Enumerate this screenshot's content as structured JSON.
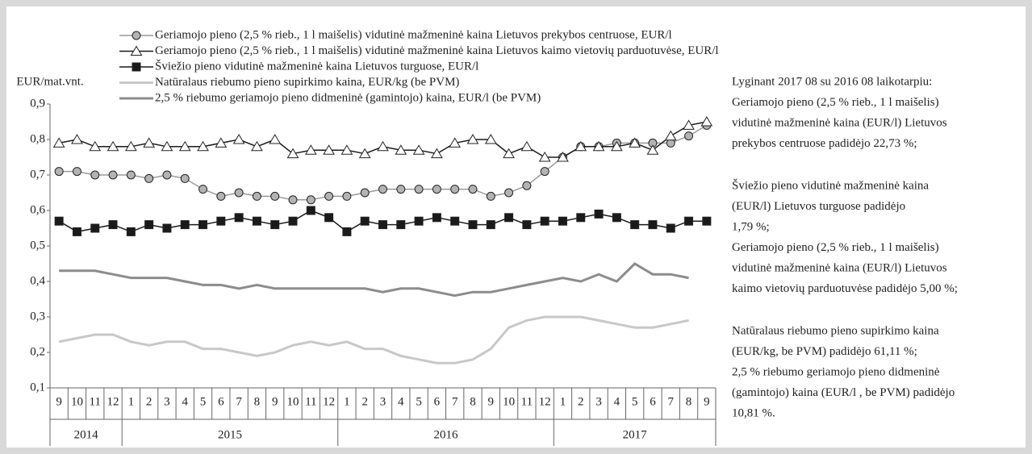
{
  "chart_data": {
    "type": "line",
    "y_label": "EUR/mat.vnt.",
    "categories": [
      "9",
      "10",
      "11",
      "12",
      "1",
      "2",
      "3",
      "4",
      "5",
      "6",
      "7",
      "8",
      "9",
      "10",
      "11",
      "12",
      "1",
      "2",
      "3",
      "4",
      "5",
      "6",
      "7",
      "8",
      "9",
      "10",
      "11",
      "12",
      "1",
      "2",
      "3",
      "4",
      "5",
      "6",
      "7",
      "8",
      "9"
    ],
    "years": [
      "2014",
      "2015",
      "2016",
      "2017"
    ],
    "ylim": [
      0.1,
      0.9
    ],
    "yticks": [
      {
        "value": 0.1,
        "label": "0,1"
      },
      {
        "value": 0.2,
        "label": "0,2"
      },
      {
        "value": 0.3,
        "label": "0,3"
      },
      {
        "value": 0.4,
        "label": "0,4"
      },
      {
        "value": 0.5,
        "label": "0,5"
      },
      {
        "value": 0.6,
        "label": "0,6"
      },
      {
        "value": 0.7,
        "label": "0,7"
      },
      {
        "value": 0.8,
        "label": "0,8"
      },
      {
        "value": 0.9,
        "label": "0,9"
      }
    ],
    "series": [
      {
        "name": "Geriamojo pieno (2,5 % rieb., 1 l maišelis) vidutinė mažmeninė kaina Lietuvos prekybos centruose, EUR/l",
        "color": "#9a9a9a",
        "marker": "circle",
        "marker_fill": "#b3b3b3",
        "values": [
          0.71,
          0.71,
          0.7,
          0.7,
          0.7,
          0.69,
          0.7,
          0.69,
          0.66,
          0.64,
          0.65,
          0.64,
          0.64,
          0.63,
          0.63,
          0.64,
          0.64,
          0.65,
          0.66,
          0.66,
          0.66,
          0.66,
          0.66,
          0.66,
          0.64,
          0.65,
          0.67,
          0.71,
          0.75,
          0.78,
          0.78,
          0.79,
          0.79,
          0.79,
          0.79,
          0.81,
          0.84
        ]
      },
      {
        "name": "Geriamojo pieno (2,5 % rieb., 1 l maišelis) vidutinė mažmeninė kaina Lietuvos kaimo vietovių parduotuvėse, EUR/l",
        "color": "#1a1a1a",
        "marker": "triangle",
        "marker_fill": "#ffffff",
        "values": [
          0.79,
          0.8,
          0.78,
          0.78,
          0.78,
          0.79,
          0.78,
          0.78,
          0.78,
          0.79,
          0.8,
          0.78,
          0.8,
          0.76,
          0.77,
          0.77,
          0.77,
          0.76,
          0.78,
          0.77,
          0.77,
          0.76,
          0.79,
          0.8,
          0.8,
          0.76,
          0.78,
          0.75,
          0.75,
          0.78,
          0.78,
          0.78,
          0.79,
          0.77,
          0.81,
          0.84,
          0.85
        ]
      },
      {
        "name": "Šviežio pieno vidutinė mažmeninė kaina Lietuvos turguose, EUR/l",
        "color": "#1a1a1a",
        "marker": "square",
        "marker_fill": "#1a1a1a",
        "values": [
          0.57,
          0.54,
          0.55,
          0.56,
          0.54,
          0.56,
          0.55,
          0.56,
          0.56,
          0.57,
          0.58,
          0.57,
          0.56,
          0.57,
          0.6,
          0.58,
          0.54,
          0.57,
          0.56,
          0.56,
          0.57,
          0.58,
          0.57,
          0.56,
          0.56,
          0.58,
          0.56,
          0.57,
          0.57,
          0.58,
          0.59,
          0.58,
          0.56,
          0.56,
          0.55,
          0.57,
          0.57
        ]
      },
      {
        "name": "Natūralaus riebumo pieno supirkimo kaina, EUR/kg (be PVM)",
        "color": "#c8c8c8",
        "values": [
          0.23,
          0.24,
          0.25,
          0.25,
          0.23,
          0.22,
          0.23,
          0.23,
          0.21,
          0.21,
          0.2,
          0.19,
          0.2,
          0.22,
          0.23,
          0.22,
          0.23,
          0.21,
          0.21,
          0.19,
          0.18,
          0.17,
          0.17,
          0.18,
          0.21,
          0.27,
          0.29,
          0.3,
          0.3,
          0.3,
          0.29,
          0.28,
          0.27,
          0.27,
          0.28,
          0.29,
          null
        ]
      },
      {
        "name": "2,5 % riebumo geriamojo pieno didmeninė (gamintojo) kaina, EUR/l (be PVM)",
        "color": "#8c8c8c",
        "values": [
          0.43,
          0.43,
          0.43,
          0.42,
          0.41,
          0.41,
          0.41,
          0.4,
          0.39,
          0.39,
          0.38,
          0.39,
          0.38,
          0.38,
          0.38,
          0.38,
          0.38,
          0.38,
          0.37,
          0.38,
          0.38,
          0.37,
          0.36,
          0.37,
          0.37,
          0.38,
          0.39,
          0.4,
          0.41,
          0.4,
          0.42,
          0.4,
          0.45,
          0.42,
          0.42,
          0.41,
          null
        ]
      }
    ],
    "notes": [
      [
        "Lyginant 2017 08 su 2016 08 laikotarpiu:",
        "Geriamojo pieno (2,5 % rieb., 1 l maišelis)",
        "vidutinė mažmeninė kaina (EUR/l) Lietuvos",
        "prekybos centruose padidėjo 22,73 %;"
      ],
      [
        "Šviežio pieno vidutinė mažmeninė kaina",
        "(EUR/l) Lietuvos turguose  padidėjo",
        "1,79 %;",
        "Geriamojo pieno (2,5 % rieb., 1 l maišelis)",
        "vidutinė mažmeninė kaina (EUR/l) Lietuvos",
        "kaimo vietovių parduotuvėse padidėjo 5,00 %;"
      ],
      [
        "Natūralaus riebumo pieno supirkimo kaina",
        "(EUR/kg, be PVM) padidėjo 61,11 %;",
        "2,5 % riebumo geriamojo pieno didmeninė",
        "(gamintojo) kaina (EUR/l , be PVM) padidėjo",
        "10,81 %."
      ]
    ]
  }
}
